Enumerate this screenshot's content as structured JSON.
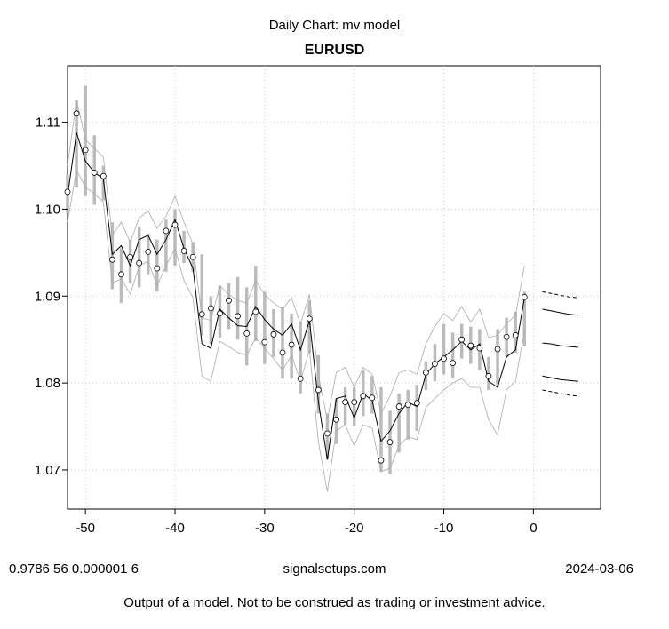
{
  "header": {
    "subtitle": "Daily Chart: mv model",
    "title": "EURUSD"
  },
  "footer": {
    "params": "0.9786 56 0.000001 6",
    "site": "signalsetups.com",
    "date": "2024-03-06",
    "disclaimer": "Output of a model.  Not to be construed as trading or investment advice."
  },
  "colors": {
    "range_bar": "#bbbbbb",
    "band": "#aaaaaa",
    "model_line": "#000000",
    "grid": "#cccccc"
  },
  "chart_data": {
    "type": "line",
    "title": "EURUSD",
    "xlabel": "",
    "ylabel": "",
    "xlim": [
      -52,
      7.5
    ],
    "ylim": [
      1.0655,
      1.1165
    ],
    "x_ticks": [
      -50,
      -40,
      -30,
      -20,
      -10,
      0
    ],
    "y_ticks": [
      1.07,
      1.08,
      1.09,
      1.1,
      1.11
    ],
    "y_tick_labels": [
      "1.07",
      "1.08",
      "1.09",
      "1.10",
      "1.11"
    ],
    "grid": true,
    "x": [
      -52,
      -51,
      -50,
      -49,
      -48,
      -47,
      -46,
      -45,
      -44,
      -43,
      -42,
      -41,
      -40,
      -39,
      -38,
      -37,
      -36,
      -35,
      -34,
      -33,
      -32,
      -31,
      -30,
      -29,
      -28,
      -27,
      -26,
      -25,
      -24,
      -23,
      -22,
      -21,
      -20,
      -19,
      -18,
      -17,
      -16,
      -15,
      -14,
      -13,
      -12,
      -11,
      -10,
      -9,
      -8,
      -7,
      -6,
      -5,
      -4,
      -3,
      -2,
      -1
    ],
    "series": [
      {
        "role": "close_points",
        "values": [
          1.102,
          1.111,
          1.1068,
          1.1042,
          1.1038,
          1.0942,
          1.0925,
          1.0945,
          1.0938,
          1.0951,
          1.0932,
          1.0975,
          1.0982,
          1.0952,
          1.0945,
          1.0879,
          1.0886,
          1.088,
          1.0895,
          1.0877,
          1.0857,
          1.0882,
          1.0847,
          1.0856,
          1.0835,
          1.0844,
          1.0805,
          1.0874,
          1.0792,
          1.0742,
          1.0758,
          1.0778,
          1.0778,
          1.0785,
          1.0783,
          1.0711,
          1.0732,
          1.0773,
          1.0775,
          1.0777,
          1.0812,
          1.0822,
          1.0828,
          1.0823,
          1.085,
          1.0843,
          1.084,
          1.0808,
          1.0839,
          1.0853,
          1.0855,
          1.0899
        ]
      },
      {
        "role": "range_high",
        "values": [
          1.104,
          1.1125,
          1.1142,
          1.1085,
          1.105,
          1.0985,
          1.0955,
          1.0965,
          1.098,
          1.0972,
          1.0965,
          1.0988,
          1.1,
          1.0975,
          1.0962,
          1.0948,
          1.09,
          1.0912,
          1.0915,
          1.0922,
          1.091,
          1.0935,
          1.0905,
          1.0885,
          1.0888,
          1.088,
          1.087,
          1.0895,
          1.0832,
          1.0765,
          1.0782,
          1.0795,
          1.0795,
          1.0815,
          1.0808,
          1.0795,
          1.0768,
          1.0788,
          1.0792,
          1.0798,
          1.0825,
          1.0845,
          1.0868,
          1.0858,
          1.0868,
          1.0865,
          1.0862,
          1.083,
          1.0862,
          1.0875,
          1.0882,
          1.0905
        ]
      },
      {
        "role": "range_low",
        "values": [
          1.0995,
          1.1025,
          1.1015,
          1.1005,
          1.101,
          1.0908,
          1.0892,
          1.0915,
          1.091,
          1.0925,
          1.0905,
          1.0928,
          1.0935,
          1.0938,
          1.0928,
          1.0855,
          1.0845,
          1.0852,
          1.0862,
          1.085,
          1.082,
          1.0848,
          1.0822,
          1.083,
          1.0805,
          1.0805,
          1.0788,
          1.0835,
          1.0765,
          1.0712,
          1.073,
          1.0752,
          1.075,
          1.0762,
          1.0765,
          1.0698,
          1.0695,
          1.072,
          1.0735,
          1.0745,
          1.0792,
          1.0802,
          1.081,
          1.0805,
          1.0828,
          1.0822,
          1.0815,
          1.0792,
          1.0795,
          1.083,
          1.0835,
          1.0842
        ]
      },
      {
        "role": "model",
        "values": [
          1.1015,
          1.1088,
          1.1055,
          1.1042,
          1.1035,
          1.0948,
          1.0958,
          1.0935,
          1.0965,
          1.097,
          1.0948,
          1.0965,
          1.0988,
          1.0955,
          1.0932,
          1.0845,
          1.084,
          1.0885,
          1.0875,
          1.0866,
          1.0865,
          1.0888,
          1.0873,
          1.0862,
          1.0855,
          1.0868,
          1.0838,
          1.0872,
          1.0778,
          1.0712,
          1.0782,
          1.0785,
          1.076,
          1.0788,
          1.078,
          1.0733,
          1.0745,
          1.0765,
          1.0778,
          1.0773,
          1.081,
          1.0822,
          1.083,
          1.0838,
          1.0848,
          1.0838,
          1.0845,
          1.0802,
          1.0795,
          1.083,
          1.0838,
          1.0898
        ]
      },
      {
        "role": "upper_band",
        "values": [
          1.105,
          1.1125,
          1.108,
          1.107,
          1.106,
          1.097,
          1.0985,
          1.0962,
          1.099,
          1.0998,
          1.0978,
          1.0992,
          1.1015,
          1.0985,
          1.096,
          1.0875,
          1.0872,
          1.0912,
          1.0902,
          1.0895,
          1.0892,
          1.0918,
          1.0902,
          1.0892,
          1.0885,
          1.0898,
          1.0868,
          1.0902,
          1.0808,
          1.0758,
          1.0812,
          1.0818,
          1.0795,
          1.0818,
          1.081,
          1.0765,
          1.0785,
          1.0812,
          1.0815,
          1.081,
          1.0845,
          1.0865,
          1.088,
          1.0872,
          1.0888,
          1.087,
          1.0885,
          1.0852,
          1.0855,
          1.0868,
          1.0878,
          1.0935
        ]
      },
      {
        "role": "lower_band",
        "values": [
          1.0985,
          1.1045,
          1.1025,
          1.1018,
          1.1008,
          1.0915,
          1.092,
          1.0902,
          1.0935,
          1.094,
          1.0912,
          1.0935,
          1.0955,
          1.0918,
          1.0898,
          1.0808,
          1.0802,
          1.0848,
          1.0842,
          1.0835,
          1.0832,
          1.0852,
          1.084,
          1.0828,
          1.0815,
          1.0832,
          1.0802,
          1.0838,
          1.0732,
          1.0675,
          1.0745,
          1.0752,
          1.0728,
          1.0752,
          1.0748,
          1.0698,
          1.0702,
          1.0728,
          1.0738,
          1.0735,
          1.0772,
          1.0782,
          1.0792,
          1.08,
          1.0805,
          1.0795,
          1.0795,
          1.0758,
          1.074,
          1.0792,
          1.0802,
          1.086
        ]
      }
    ],
    "projection_x": [
      1,
      2,
      3,
      4,
      5
    ],
    "projections": [
      {
        "role": "upper_outer",
        "style": "dashed",
        "values": [
          1.0905,
          1.0903,
          1.0901,
          1.0899,
          1.0898
        ]
      },
      {
        "role": "upper_inner",
        "style": "solid",
        "values": [
          1.0885,
          1.0883,
          1.0881,
          1.0879,
          1.0878
        ]
      },
      {
        "role": "center",
        "style": "solid",
        "values": [
          1.0846,
          1.0845,
          1.0843,
          1.0842,
          1.0841
        ]
      },
      {
        "role": "lower_inner",
        "style": "solid",
        "values": [
          1.0808,
          1.0806,
          1.0804,
          1.0803,
          1.0802
        ]
      },
      {
        "role": "lower_outer",
        "style": "dashed",
        "values": [
          1.0792,
          1.079,
          1.0788,
          1.0786,
          1.0785
        ]
      }
    ]
  }
}
